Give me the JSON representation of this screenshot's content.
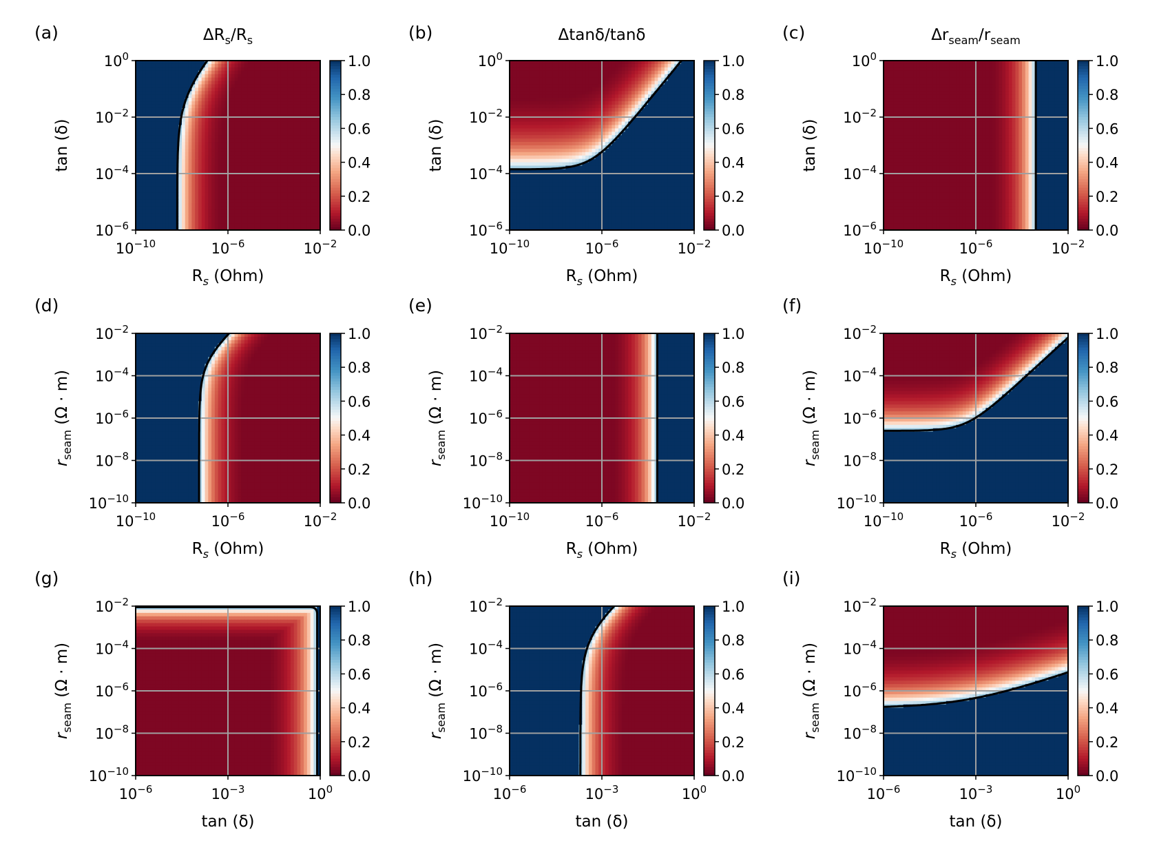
{
  "figure": {
    "colormap": "RdBu",
    "low_color": "#7a0c20",
    "high_color": "#0a2f5e",
    "grid_color": "#a0a0a0"
  },
  "chart_data": [
    {
      "id": "a",
      "type": "heatmap",
      "panel_label": "(a)",
      "title_main": "ΔR",
      "title_sub": "s",
      "title_tail": "/R",
      "title_sub2": "s",
      "xlabel_main": "R",
      "xlabel_sub": "s",
      "xlabel_tail": " (Ohm)",
      "ylabel_main": "tan (δ)",
      "ylabel_sub": "",
      "ylabel_tail": "",
      "xticks": [
        {
          "base": "10",
          "exp": "−10"
        },
        {
          "base": "10",
          "exp": "−6"
        },
        {
          "base": "10",
          "exp": "−2"
        }
      ],
      "yticks": [
        {
          "base": "10",
          "exp": "0"
        },
        {
          "base": "10",
          "exp": "−2"
        },
        {
          "base": "10",
          "exp": "−4"
        },
        {
          "base": "10",
          "exp": "−6"
        }
      ],
      "xlim_log": [
        -10,
        -2
      ],
      "ylim_log": [
        -6,
        0
      ],
      "colorbar_ticks": [
        "1.0",
        "0.8",
        "0.6",
        "0.4",
        "0.2",
        "0.0"
      ],
      "mode": "vertical",
      "params": {
        "b0": -8.2,
        "sep": 0.6,
        "slope": 0.5,
        "dir": 1
      }
    },
    {
      "id": "b",
      "type": "heatmap",
      "panel_label": "(b)",
      "title_main": "Δtanδ/tanδ",
      "title_sub": "",
      "title_tail": "",
      "title_sub2": "",
      "xlabel_main": "R",
      "xlabel_sub": "s",
      "xlabel_tail": " (Ohm)",
      "ylabel_main": "tan (δ)",
      "ylabel_sub": "",
      "ylabel_tail": "",
      "xticks": [
        {
          "base": "10",
          "exp": "−10"
        },
        {
          "base": "10",
          "exp": "−6"
        },
        {
          "base": "10",
          "exp": "−2"
        }
      ],
      "yticks": [
        {
          "base": "10",
          "exp": "0"
        },
        {
          "base": "10",
          "exp": "−2"
        },
        {
          "base": "10",
          "exp": "−4"
        },
        {
          "base": "10",
          "exp": "−6"
        }
      ],
      "xlim_log": [
        -10,
        -2
      ],
      "ylim_log": [
        -6,
        0
      ],
      "colorbar_ticks": [
        "1.0",
        "0.8",
        "0.6",
        "0.4",
        "0.2",
        "0.0"
      ],
      "mode": "horizontal",
      "params": {
        "b0": -3.85,
        "sep": 0.8,
        "slope": 1.0
      }
    },
    {
      "id": "c",
      "type": "heatmap",
      "panel_label": "(c)",
      "title_main": "Δr",
      "title_sub": "seam",
      "title_tail": "/r",
      "title_sub2": "seam",
      "xlabel_main": "R",
      "xlabel_sub": "s",
      "xlabel_tail": " (Ohm)",
      "ylabel_main": "tan (δ)",
      "ylabel_sub": "",
      "ylabel_tail": "",
      "xticks": [
        {
          "base": "10",
          "exp": "−10"
        },
        {
          "base": "10",
          "exp": "−6"
        },
        {
          "base": "10",
          "exp": "−2"
        }
      ],
      "yticks": [
        {
          "base": "10",
          "exp": "0"
        },
        {
          "base": "10",
          "exp": "−2"
        },
        {
          "base": "10",
          "exp": "−4"
        },
        {
          "base": "10",
          "exp": "−6"
        }
      ],
      "xlim_log": [
        -10,
        -2
      ],
      "ylim_log": [
        -6,
        0
      ],
      "colorbar_ticks": [
        "1.0",
        "0.8",
        "0.6",
        "0.4",
        "0.2",
        "0.0"
      ],
      "mode": "vertical",
      "params": {
        "b0": -3.4,
        "sep": 0.6,
        "slope": 0.0,
        "dir": -1
      }
    },
    {
      "id": "d",
      "type": "heatmap",
      "panel_label": "(d)",
      "title_main": "",
      "title_sub": "",
      "title_tail": "",
      "title_sub2": "",
      "xlabel_main": "R",
      "xlabel_sub": "s",
      "xlabel_tail": " (Ohm)",
      "ylabel_main": "r",
      "ylabel_sub": "seam",
      "ylabel_tail": " (Ω · m)",
      "xticks": [
        {
          "base": "10",
          "exp": "−10"
        },
        {
          "base": "10",
          "exp": "−6"
        },
        {
          "base": "10",
          "exp": "−2"
        }
      ],
      "yticks": [
        {
          "base": "10",
          "exp": "−2"
        },
        {
          "base": "10",
          "exp": "−4"
        },
        {
          "base": "10",
          "exp": "−6"
        },
        {
          "base": "10",
          "exp": "−8"
        },
        {
          "base": "10",
          "exp": "−10"
        }
      ],
      "xlim_log": [
        -10,
        -2
      ],
      "ylim_log": [
        -10,
        -2
      ],
      "colorbar_ticks": [
        "1.0",
        "0.8",
        "0.6",
        "0.4",
        "0.2",
        "0.0"
      ],
      "mode": "vertical",
      "params": {
        "b0": -7.25,
        "sep": 0.6,
        "slope": 0.5,
        "dir": 1
      }
    },
    {
      "id": "e",
      "type": "heatmap",
      "panel_label": "(e)",
      "title_main": "",
      "title_sub": "",
      "title_tail": "",
      "title_sub2": "",
      "xlabel_main": "R",
      "xlabel_sub": "s",
      "xlabel_tail": " (Ohm)",
      "ylabel_main": "r",
      "ylabel_sub": "seam",
      "ylabel_tail": " (Ω · m)",
      "xticks": [
        {
          "base": "10",
          "exp": "−10"
        },
        {
          "base": "10",
          "exp": "−6"
        },
        {
          "base": "10",
          "exp": "−2"
        }
      ],
      "yticks": [
        {
          "base": "10",
          "exp": "−2"
        },
        {
          "base": "10",
          "exp": "−4"
        },
        {
          "base": "10",
          "exp": "−6"
        },
        {
          "base": "10",
          "exp": "−8"
        },
        {
          "base": "10",
          "exp": "−10"
        }
      ],
      "xlim_log": [
        -10,
        -2
      ],
      "ylim_log": [
        -10,
        -2
      ],
      "colorbar_ticks": [
        "1.0",
        "0.8",
        "0.6",
        "0.4",
        "0.2",
        "0.0"
      ],
      "mode": "vertical",
      "params": {
        "b0": -3.6,
        "sep": 0.6,
        "slope": 0.0,
        "dir": -1
      }
    },
    {
      "id": "f",
      "type": "heatmap",
      "panel_label": "(f)",
      "title_main": "",
      "title_sub": "",
      "title_tail": "",
      "title_sub2": "",
      "xlabel_main": "R",
      "xlabel_sub": "s",
      "xlabel_tail": " (Ohm)",
      "ylabel_main": "r",
      "ylabel_sub": "seam",
      "ylabel_tail": " (Ω · m)",
      "xticks": [
        {
          "base": "10",
          "exp": "−10"
        },
        {
          "base": "10",
          "exp": "−6"
        },
        {
          "base": "10",
          "exp": "−2"
        }
      ],
      "yticks": [
        {
          "base": "10",
          "exp": "−2"
        },
        {
          "base": "10",
          "exp": "−4"
        },
        {
          "base": "10",
          "exp": "−6"
        },
        {
          "base": "10",
          "exp": "−8"
        },
        {
          "base": "10",
          "exp": "−10"
        }
      ],
      "xlim_log": [
        -10,
        -2
      ],
      "ylim_log": [
        -10,
        -2
      ],
      "colorbar_ticks": [
        "1.0",
        "0.8",
        "0.6",
        "0.4",
        "0.2",
        "0.0"
      ],
      "mode": "horizontal",
      "params": {
        "b0": -6.6,
        "sep": 0.8,
        "slope": 1.0
      }
    },
    {
      "id": "g",
      "type": "heatmap",
      "panel_label": "(g)",
      "title_main": "",
      "title_sub": "",
      "title_tail": "",
      "title_sub2": "",
      "xlabel_main": "tan (δ)",
      "xlabel_sub": "",
      "xlabel_tail": "",
      "ylabel_main": "r",
      "ylabel_sub": "seam",
      "ylabel_tail": " (Ω · m)",
      "xticks": [
        {
          "base": "10",
          "exp": "−6"
        },
        {
          "base": "10",
          "exp": "−3"
        },
        {
          "base": "10",
          "exp": "0"
        }
      ],
      "yticks": [
        {
          "base": "10",
          "exp": "−2"
        },
        {
          "base": "10",
          "exp": "−4"
        },
        {
          "base": "10",
          "exp": "−6"
        },
        {
          "base": "10",
          "exp": "−8"
        },
        {
          "base": "10",
          "exp": "−10"
        }
      ],
      "xlim_log": [
        -6,
        0
      ],
      "ylim_log": [
        -10,
        -2
      ],
      "colorbar_ticks": [
        "1.0",
        "0.8",
        "0.6",
        "0.4",
        "0.2",
        "0.0"
      ],
      "mode": "corner",
      "params": {
        "bx": -0.1,
        "by": -2.05,
        "sep": 0.5
      }
    },
    {
      "id": "h",
      "type": "heatmap",
      "panel_label": "(h)",
      "title_main": "",
      "title_sub": "",
      "title_tail": "",
      "title_sub2": "",
      "xlabel_main": "tan (δ)",
      "xlabel_sub": "",
      "xlabel_tail": "",
      "ylabel_main": "r",
      "ylabel_sub": "seam",
      "ylabel_tail": " (Ω · m)",
      "xticks": [
        {
          "base": "10",
          "exp": "−6"
        },
        {
          "base": "10",
          "exp": "−3"
        },
        {
          "base": "10",
          "exp": "0"
        }
      ],
      "yticks": [
        {
          "base": "10",
          "exp": "−2"
        },
        {
          "base": "10",
          "exp": "−4"
        },
        {
          "base": "10",
          "exp": "−6"
        },
        {
          "base": "10",
          "exp": "−8"
        },
        {
          "base": "10",
          "exp": "−10"
        }
      ],
      "xlim_log": [
        -6,
        0
      ],
      "ylim_log": [
        -10,
        -2
      ],
      "colorbar_ticks": [
        "1.0",
        "0.8",
        "0.6",
        "0.4",
        "0.2",
        "0.0"
      ],
      "mode": "vertical",
      "params": {
        "b0": -3.7,
        "sep": 0.45,
        "slope": 0.4,
        "dir": 1
      }
    },
    {
      "id": "i",
      "type": "heatmap",
      "panel_label": "(i)",
      "title_main": "",
      "title_sub": "",
      "title_tail": "",
      "title_sub2": "",
      "xlabel_main": "tan (δ)",
      "xlabel_sub": "",
      "xlabel_tail": "",
      "ylabel_main": "r",
      "ylabel_sub": "seam",
      "ylabel_tail": " (Ω · m)",
      "xticks": [
        {
          "base": "10",
          "exp": "−6"
        },
        {
          "base": "10",
          "exp": "−3"
        },
        {
          "base": "10",
          "exp": "0"
        }
      ],
      "yticks": [
        {
          "base": "10",
          "exp": "−2"
        },
        {
          "base": "10",
          "exp": "−4"
        },
        {
          "base": "10",
          "exp": "−6"
        },
        {
          "base": "10",
          "exp": "−8"
        },
        {
          "base": "10",
          "exp": "−10"
        }
      ],
      "xlim_log": [
        -6,
        0
      ],
      "ylim_log": [
        -10,
        -2
      ],
      "colorbar_ticks": [
        "1.0",
        "0.8",
        "0.6",
        "0.4",
        "0.2",
        "0.0"
      ],
      "mode": "horizontal",
      "params": {
        "b0": -6.8,
        "sep": 0.8,
        "slope": 0.5
      }
    }
  ]
}
